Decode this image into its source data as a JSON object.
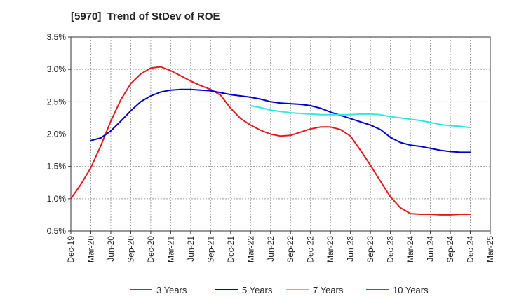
{
  "chart_data": {
    "type": "line",
    "title": "[5970]  Trend of StDev of ROE",
    "x": [
      "Dec-19",
      "Mar-20",
      "Jun-20",
      "Sep-20",
      "Dec-20",
      "Mar-21",
      "Jun-21",
      "Sep-21",
      "Dec-21",
      "Mar-22",
      "Jun-22",
      "Sep-22",
      "Dec-22",
      "Mar-23",
      "Jun-23",
      "Sep-23",
      "Dec-23",
      "Mar-24",
      "Jun-24",
      "Sep-24",
      "Dec-24",
      "Mar-25"
    ],
    "y_ticks": [
      "0.5%",
      "1.0%",
      "1.5%",
      "2.0%",
      "2.5%",
      "3.0%",
      "3.5%"
    ],
    "ylim": [
      0.5,
      3.5
    ],
    "grid": true,
    "legend_position": "bottom",
    "series": [
      {
        "name": "3 Years",
        "color": "#e41a1c",
        "points": [
          [
            0,
            1.0
          ],
          [
            0.5,
            1.22
          ],
          [
            1,
            1.48
          ],
          [
            1.5,
            1.82
          ],
          [
            2,
            2.2
          ],
          [
            2.5,
            2.53
          ],
          [
            3,
            2.78
          ],
          [
            3.5,
            2.93
          ],
          [
            4,
            3.02
          ],
          [
            4.5,
            3.04
          ],
          [
            5,
            2.98
          ],
          [
            5.5,
            2.9
          ],
          [
            6,
            2.82
          ],
          [
            6.5,
            2.75
          ],
          [
            7,
            2.69
          ],
          [
            7.5,
            2.6
          ],
          [
            8,
            2.4
          ],
          [
            8.5,
            2.24
          ],
          [
            9,
            2.14
          ],
          [
            9.5,
            2.06
          ],
          [
            10,
            2.0
          ],
          [
            10.5,
            1.97
          ],
          [
            11,
            1.98
          ],
          [
            11.5,
            2.03
          ],
          [
            12,
            2.08
          ],
          [
            12.5,
            2.11
          ],
          [
            13,
            2.11
          ],
          [
            13.5,
            2.07
          ],
          [
            14,
            1.97
          ],
          [
            14.5,
            1.75
          ],
          [
            15,
            1.52
          ],
          [
            15.5,
            1.27
          ],
          [
            16,
            1.03
          ],
          [
            16.5,
            0.86
          ],
          [
            17,
            0.77
          ],
          [
            17.5,
            0.76
          ],
          [
            18,
            0.76
          ],
          [
            18.5,
            0.75
          ],
          [
            19,
            0.75
          ],
          [
            19.5,
            0.76
          ],
          [
            20,
            0.76
          ]
        ]
      },
      {
        "name": "5 Years",
        "color": "#0000cc",
        "points": [
          [
            1,
            1.9
          ],
          [
            1.5,
            1.94
          ],
          [
            2,
            2.05
          ],
          [
            2.5,
            2.2
          ],
          [
            3,
            2.36
          ],
          [
            3.5,
            2.5
          ],
          [
            4,
            2.59
          ],
          [
            4.5,
            2.65
          ],
          [
            5,
            2.68
          ],
          [
            5.5,
            2.69
          ],
          [
            6,
            2.69
          ],
          [
            6.5,
            2.68
          ],
          [
            7,
            2.67
          ],
          [
            7.5,
            2.64
          ],
          [
            8,
            2.61
          ],
          [
            8.5,
            2.59
          ],
          [
            9,
            2.57
          ],
          [
            9.5,
            2.54
          ],
          [
            10,
            2.5
          ],
          [
            10.5,
            2.48
          ],
          [
            11,
            2.47
          ],
          [
            11.5,
            2.46
          ],
          [
            12,
            2.44
          ],
          [
            12.5,
            2.4
          ],
          [
            13,
            2.34
          ],
          [
            13.5,
            2.29
          ],
          [
            14,
            2.24
          ],
          [
            14.5,
            2.19
          ],
          [
            15,
            2.14
          ],
          [
            15.5,
            2.07
          ],
          [
            16,
            1.95
          ],
          [
            16.5,
            1.87
          ],
          [
            17,
            1.83
          ],
          [
            17.5,
            1.81
          ],
          [
            18,
            1.78
          ],
          [
            18.5,
            1.75
          ],
          [
            19,
            1.73
          ],
          [
            19.5,
            1.72
          ],
          [
            20,
            1.72
          ]
        ]
      },
      {
        "name": "7 Years",
        "color": "#33e6e6",
        "points": [
          [
            9,
            2.44
          ],
          [
            9.5,
            2.41
          ],
          [
            10,
            2.37
          ],
          [
            10.5,
            2.35
          ],
          [
            11,
            2.33
          ],
          [
            11.5,
            2.32
          ],
          [
            12,
            2.31
          ],
          [
            12.5,
            2.3
          ],
          [
            13,
            2.3
          ],
          [
            13.5,
            2.3
          ],
          [
            14,
            2.3
          ],
          [
            14.5,
            2.31
          ],
          [
            15,
            2.31
          ],
          [
            15.5,
            2.3
          ],
          [
            16,
            2.27
          ],
          [
            16.5,
            2.25
          ],
          [
            17,
            2.23
          ],
          [
            17.5,
            2.21
          ],
          [
            18,
            2.18
          ],
          [
            18.5,
            2.15
          ],
          [
            19,
            2.13
          ],
          [
            19.5,
            2.12
          ],
          [
            20,
            2.1
          ]
        ]
      },
      {
        "name": "10 Years",
        "color": "#1a8c1a",
        "points": []
      }
    ]
  }
}
